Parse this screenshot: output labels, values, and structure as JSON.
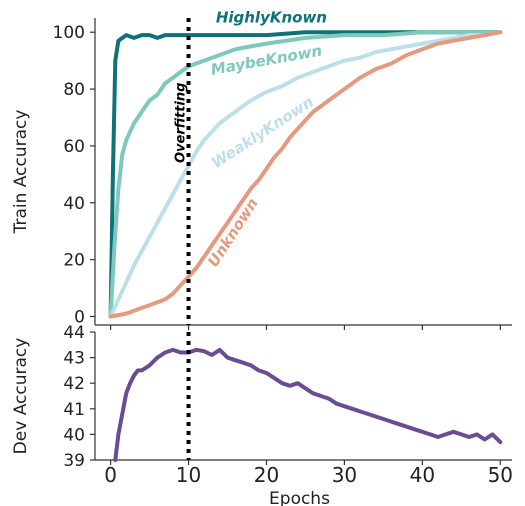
{
  "chart_data": [
    {
      "type": "line",
      "ylabel": "Train Accuracy",
      "xlim": [
        -2,
        51.5
      ],
      "ylim": [
        -3,
        105
      ],
      "yticks": [
        0,
        20,
        40,
        60,
        80,
        100
      ],
      "grid": false,
      "legend": "none",
      "annotation": {
        "x": 10,
        "text": "Overfitting"
      },
      "series": [
        {
          "name": "HighlyKnown",
          "color": "#0d7377",
          "label_at": {
            "x": 13.5,
            "y": 103.5,
            "rotate": 0
          },
          "x": [
            0,
            0.3,
            0.6,
            1,
            2,
            3,
            4,
            5,
            6,
            7,
            8,
            9,
            10,
            12,
            14,
            16,
            18,
            20,
            25,
            30,
            35,
            40,
            45,
            50
          ],
          "y": [
            0,
            50,
            90,
            97,
            99,
            98,
            99,
            99,
            98,
            99,
            99,
            99,
            99,
            99,
            99,
            99,
            99,
            99,
            100,
            100,
            100,
            100,
            100,
            100
          ]
        },
        {
          "name": "MaybeKnown",
          "color": "#7fc8bd",
          "label_at": {
            "x": 13,
            "y": 85,
            "rotate": -10
          },
          "x": [
            0,
            0.5,
            1,
            1.5,
            2,
            3,
            4,
            5,
            6,
            7,
            8,
            9,
            10,
            11,
            12,
            14,
            16,
            18,
            20,
            25,
            30,
            35,
            40,
            45,
            50
          ],
          "y": [
            0,
            25,
            45,
            57,
            62,
            68,
            72,
            76,
            78,
            82,
            84,
            86,
            88,
            89,
            90,
            92,
            94,
            95,
            96,
            98,
            99,
            99,
            100,
            100,
            100
          ]
        },
        {
          "name": "WeaklyKnown",
          "color": "#bddfea",
          "label_at": {
            "x": 13.5,
            "y": 52,
            "rotate": -33
          },
          "x": [
            0,
            1,
            2,
            3,
            4,
            5,
            6,
            7,
            8,
            9,
            10,
            11,
            12,
            13,
            14,
            15,
            16,
            18,
            20,
            22,
            24,
            26,
            28,
            30,
            32,
            34,
            36,
            38,
            40,
            42,
            44,
            46,
            48,
            50
          ],
          "y": [
            0,
            6,
            12,
            18,
            23,
            28,
            33,
            38,
            43,
            48,
            53,
            58,
            62,
            65,
            68,
            70,
            72,
            76,
            79,
            81,
            84,
            86,
            88,
            90,
            91,
            93,
            94,
            95,
            96,
            97,
            98,
            99,
            99,
            100
          ]
        },
        {
          "name": "Unknown",
          "color": "#e59a80",
          "label_at": {
            "x": 13.5,
            "y": 17,
            "rotate": -57
          },
          "x": [
            0,
            1,
            2,
            3,
            4,
            5,
            6,
            7,
            8,
            9,
            10,
            11,
            12,
            13,
            14,
            15,
            16,
            17,
            18,
            19,
            20,
            21,
            22,
            23,
            24,
            25,
            26,
            27,
            28,
            29,
            30,
            32,
            34,
            36,
            38,
            40,
            42,
            44,
            46,
            48,
            50
          ],
          "y": [
            0,
            0.5,
            1,
            2,
            3,
            4,
            5,
            6,
            8,
            11,
            14,
            17,
            21,
            25,
            29,
            33,
            37,
            41,
            45,
            48,
            52,
            56,
            59,
            63,
            66,
            69,
            72,
            74,
            76,
            78,
            80,
            84,
            87,
            89,
            92,
            94,
            96,
            97,
            98,
            99,
            100
          ]
        }
      ]
    },
    {
      "type": "line",
      "xlabel": "Epochs",
      "ylabel": "Dev Accuracy",
      "xlim": [
        -2,
        51.5
      ],
      "ylim": [
        39,
        44
      ],
      "xticks": [
        0,
        10,
        20,
        30,
        40,
        50
      ],
      "yticks": [
        39,
        40,
        41,
        42,
        43,
        44
      ],
      "grid": false,
      "legend": "none",
      "annotation": {
        "x": 10,
        "text": ""
      },
      "series": [
        {
          "name": "",
          "color": "#6a4c93",
          "x": [
            0.6,
            1,
            1.5,
            2,
            2.5,
            3,
            3.5,
            4,
            5,
            6,
            7,
            8,
            9,
            10,
            11,
            12,
            13,
            14,
            15,
            16,
            17,
            18,
            19,
            20,
            21,
            22,
            23,
            24,
            25,
            26,
            27,
            28,
            29,
            30,
            31,
            32,
            33,
            34,
            35,
            36,
            37,
            38,
            39,
            40,
            41,
            42,
            43,
            44,
            45,
            46,
            47,
            48,
            49,
            50
          ],
          "y": [
            39,
            40,
            40.8,
            41.6,
            42,
            42.3,
            42.5,
            42.5,
            42.7,
            43,
            43.2,
            43.3,
            43.2,
            43.2,
            43.3,
            43.25,
            43.1,
            43.3,
            43,
            42.9,
            42.8,
            42.7,
            42.5,
            42.4,
            42.2,
            42,
            41.9,
            42,
            41.8,
            41.6,
            41.5,
            41.4,
            41.2,
            41.1,
            41,
            40.9,
            40.8,
            40.7,
            40.6,
            40.5,
            40.4,
            40.3,
            40.2,
            40.1,
            40,
            39.9,
            40,
            40.1,
            40,
            39.9,
            40,
            39.8,
            40,
            39.7
          ]
        }
      ]
    }
  ]
}
